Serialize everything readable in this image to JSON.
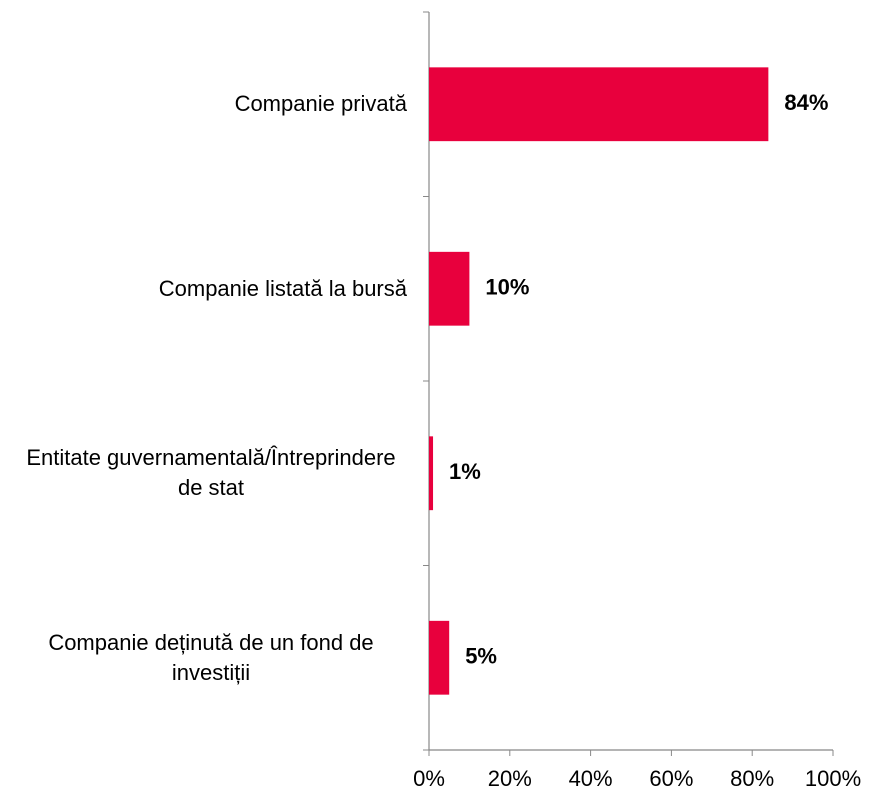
{
  "chart_data": {
    "type": "barh",
    "categories": [
      "Companie privată",
      "Companie listată la bursă",
      "Entitate guvernamentală/Întreprindere de stat",
      "Companie deținută de un fond de investiții"
    ],
    "values": [
      84,
      10,
      1,
      5
    ],
    "value_labels": [
      "84%",
      "10%",
      "1%",
      "5%"
    ],
    "color": "#e8003d",
    "xlim": [
      0,
      100
    ],
    "xticks": [
      {
        "value": 0,
        "label": "0%"
      },
      {
        "value": 20,
        "label": "20%"
      },
      {
        "value": 40,
        "label": "40%"
      },
      {
        "value": 60,
        "label": "60%"
      },
      {
        "value": 80,
        "label": "80%"
      },
      {
        "value": 100,
        "label": "100%"
      }
    ]
  }
}
